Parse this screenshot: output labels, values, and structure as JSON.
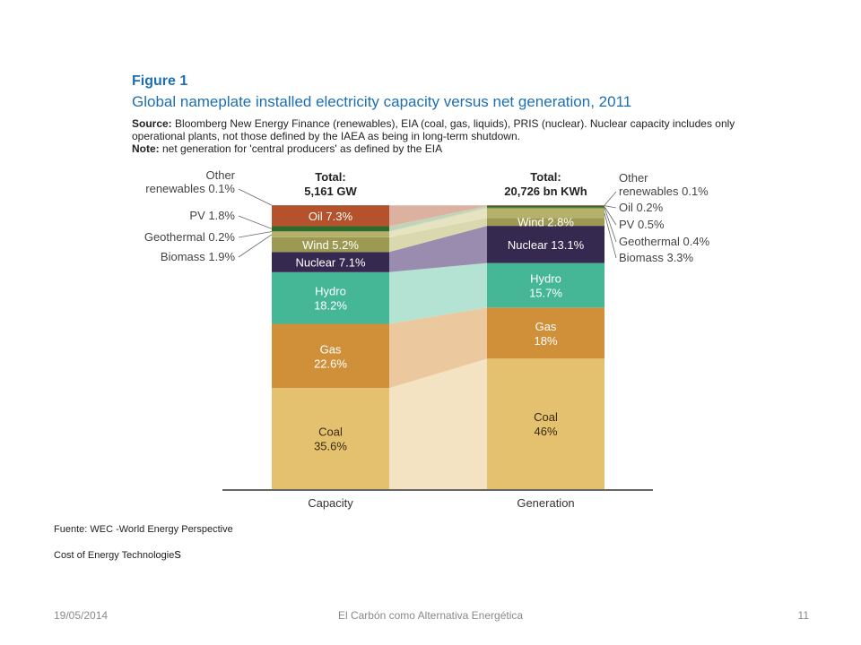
{
  "figure": {
    "label": "Figure 1",
    "title": "Global nameplate installed electricity capacity versus net generation, 2011",
    "source_label": "Source:",
    "source_text": " Bloomberg New Energy Finance (renewables), EIA (coal, gas, liquids), PRIS (nuclear). Nuclear capacity includes only operational plants, not those defined by the IAEA as being in long-term shutdown.",
    "note_label": "Note:",
    "note_text": " net generation for 'central producers' as defined by the EIA"
  },
  "chart_data": {
    "type": "bar",
    "stacked": true,
    "categories": [
      "Capacity",
      "Generation"
    ],
    "totals": [
      {
        "label": "Total:",
        "value": "5,161 GW"
      },
      {
        "label": "Total:",
        "value": "20,726 bn KWh"
      }
    ],
    "series": [
      {
        "name": "Coal",
        "values": [
          35.6,
          46
        ],
        "color": "#e3c16f",
        "flow_color": "#f3e3c2",
        "text_color": "#3a2a10"
      },
      {
        "name": "Gas",
        "values": [
          22.6,
          18
        ],
        "color": "#d0903a",
        "flow_color": "#ebc89e",
        "text_color": "#ffffff"
      },
      {
        "name": "Hydro",
        "values": [
          18.2,
          15.7
        ],
        "color": "#45b797",
        "flow_color": "#b4e3d3",
        "text_color": "#ffffff"
      },
      {
        "name": "Nuclear",
        "values": [
          7.1,
          13.1
        ],
        "color": "#35294f",
        "flow_color": "#9a8cae",
        "text_color": "#ffffff"
      },
      {
        "name": "Wind",
        "values": [
          5.2,
          2.8
        ],
        "color": "#9c9a52",
        "flow_color": "#d9d8ae",
        "text_color": "#ffffff"
      },
      {
        "name": "Biomass",
        "values": [
          1.9,
          3.3
        ],
        "color": "#b5b16b",
        "flow_color": "#e6e3c0",
        "text_color": "#ffffff"
      },
      {
        "name": "Geothermal",
        "values": [
          0.2,
          0.4
        ],
        "color": "#7f8f42",
        "flow_color": "#d4dab8",
        "text_color": "#ffffff"
      },
      {
        "name": "PV",
        "values": [
          1.8,
          0.5
        ],
        "color": "#2e6a2c",
        "flow_color": "#c2d4b8",
        "text_color": "#ffffff"
      },
      {
        "name": "Oil",
        "values": [
          7.3,
          0.2
        ],
        "color": "#b5522c",
        "flow_color": "#dcb1a0",
        "text_color": "#ffffff"
      },
      {
        "name": "Other renewables",
        "values": [
          0.1,
          0.1
        ],
        "color": "#8c8c8c",
        "flow_color": "#d8d8d8",
        "text_color": "#ffffff"
      }
    ],
    "bar_labels": {
      "Capacity": [
        {
          "series": "Coal",
          "lines": [
            "Coal",
            "35.6%"
          ]
        },
        {
          "series": "Gas",
          "lines": [
            "Gas",
            "22.6%"
          ]
        },
        {
          "series": "Hydro",
          "lines": [
            "Hydro",
            "18.2%"
          ]
        },
        {
          "series": "Nuclear",
          "lines": [
            "Nuclear 7.1%"
          ]
        },
        {
          "series": "Wind",
          "lines": [
            "Wind 5.2%"
          ]
        },
        {
          "series": "Oil",
          "lines": [
            "Oil 7.3%"
          ]
        }
      ],
      "Generation": [
        {
          "series": "Coal",
          "lines": [
            "Coal",
            "46%"
          ]
        },
        {
          "series": "Gas",
          "lines": [
            "Gas",
            "18%"
          ]
        },
        {
          "series": "Hydro",
          "lines": [
            "Hydro",
            "15.7%"
          ]
        },
        {
          "series": "Nuclear",
          "lines": [
            "Nuclear 13.1%"
          ]
        },
        {
          "series": "Wind",
          "lines": [
            "Wind 2.8%"
          ]
        }
      ]
    },
    "callouts_left": [
      {
        "series": "Other renewables",
        "lines": [
          "Other",
          "renewables 0.1%"
        ]
      },
      {
        "series": "PV",
        "lines": [
          "PV 1.8%"
        ]
      },
      {
        "series": "Geothermal",
        "lines": [
          "Geothermal 0.2%"
        ]
      },
      {
        "series": "Biomass",
        "lines": [
          "Biomass 1.9%"
        ]
      }
    ],
    "callouts_right": [
      {
        "series": "Other renewables",
        "lines": [
          "Other",
          "renewables 0.1%"
        ]
      },
      {
        "series": "Oil",
        "lines": [
          "Oil 0.2%"
        ]
      },
      {
        "series": "PV",
        "lines": [
          "PV 0.5%"
        ]
      },
      {
        "series": "Geothermal",
        "lines": [
          "Geothermal 0.4%"
        ]
      },
      {
        "series": "Biomass",
        "lines": [
          "Biomass 3.3%"
        ]
      }
    ],
    "ylim": [
      0,
      100
    ]
  },
  "source_note": {
    "line1": "Fuente: WEC -World Energy Perspective",
    "line2_main": "Cost of Energy Technologie",
    "line2_tail": "s"
  },
  "slide_footer": {
    "date": "19/05/2014",
    "title": "El Carbón como Alternativa Energética",
    "page": "11"
  }
}
